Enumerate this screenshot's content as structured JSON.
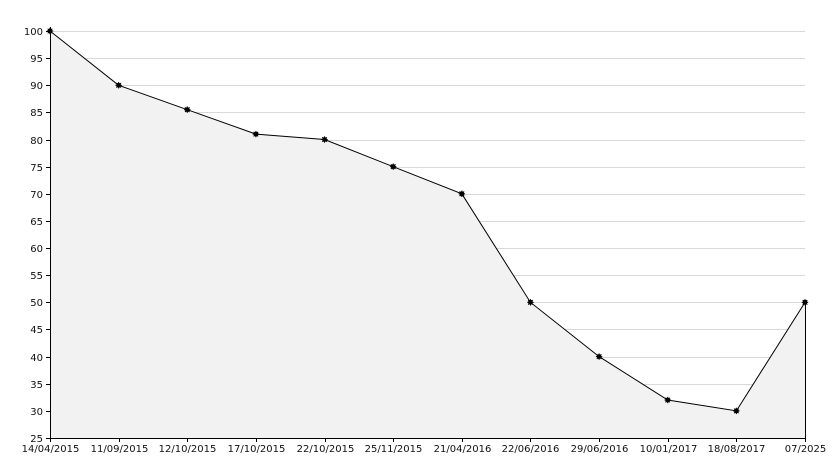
{
  "chart_data": {
    "type": "area",
    "title": "",
    "xlabel": "",
    "ylabel": "",
    "categories": [
      "14/04/2015",
      "11/09/2015",
      "12/10/2015",
      "17/10/2015",
      "22/10/2015",
      "25/11/2015",
      "21/04/2016",
      "22/06/2016",
      "29/06/2016",
      "10/01/2017",
      "18/08/2017",
      "07/2025"
    ],
    "values": [
      100,
      90,
      85.5,
      81,
      80,
      75,
      70,
      50,
      40,
      32,
      30,
      50
    ],
    "ylim": [
      25,
      100
    ],
    "yticks": [
      25,
      30,
      35,
      40,
      45,
      50,
      55,
      60,
      65,
      70,
      75,
      80,
      85,
      90,
      95,
      100
    ],
    "grid": true,
    "colors": {
      "line": "#000000",
      "fill": "#f2f2f2",
      "marker": "#000000",
      "grid": "#d9d9d9"
    }
  }
}
